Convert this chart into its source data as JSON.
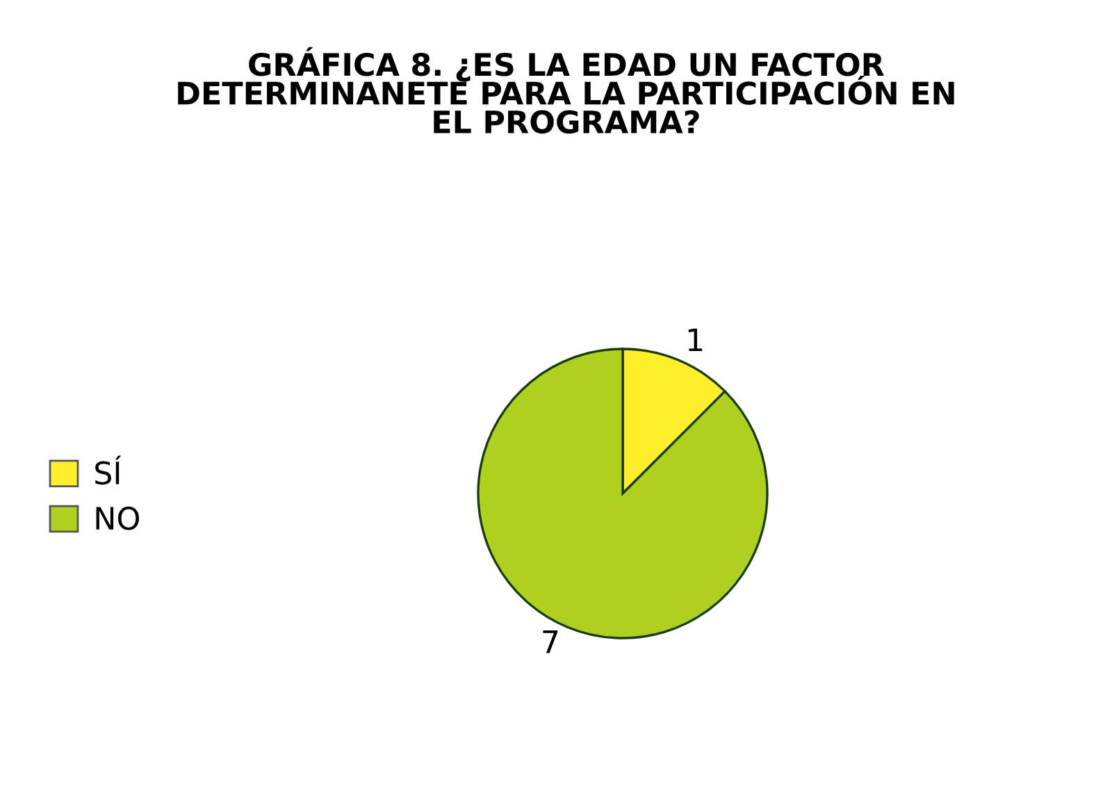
{
  "chart_data": {
    "type": "pie",
    "title": "GRÁFICA 8. ¿ES LA EDAD UN FACTOR\nDETERMINANETE PARA LA PARTICIPACIÓN EN\nEL PROGRAMA?",
    "categories": [
      "SÍ",
      "NO"
    ],
    "values": [
      1,
      7
    ],
    "colors": [
      "#ffee2a",
      "#b0d020"
    ],
    "data_labels": true,
    "legend": "left"
  }
}
